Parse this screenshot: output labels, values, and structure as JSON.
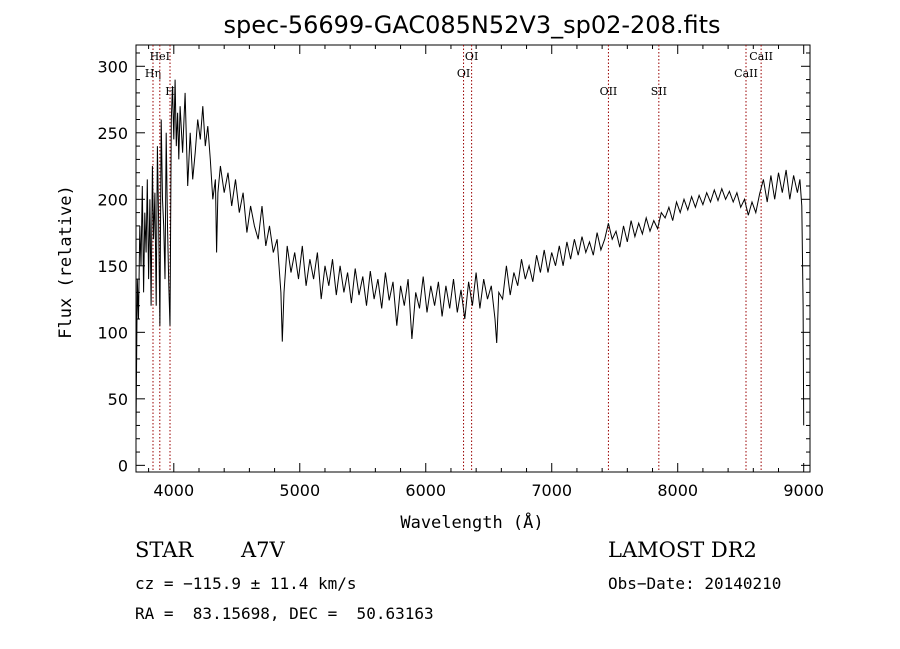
{
  "chart_data": {
    "type": "line",
    "title": "spec-56699-GAC085N52V3_sp02-208.fits",
    "xlabel": "Wavelength (Å)",
    "ylabel": "Flux (relative)",
    "xlim": [
      3700,
      9050
    ],
    "ylim": [
      -5,
      316
    ],
    "x_ticks": [
      4000,
      5000,
      6000,
      7000,
      8000,
      9000
    ],
    "y_ticks": [
      0,
      50,
      100,
      150,
      200,
      250,
      300
    ],
    "grid": false,
    "line_color": "#000000",
    "marker_color": "#990000",
    "series": [
      {
        "points": [
          [
            3700,
            25
          ],
          [
            3710,
            140
          ],
          [
            3720,
            110
          ],
          [
            3730,
            180
          ],
          [
            3740,
            150
          ],
          [
            3750,
            210
          ],
          [
            3760,
            130
          ],
          [
            3770,
            190
          ],
          [
            3780,
            160
          ],
          [
            3790,
            215
          ],
          [
            3800,
            140
          ],
          [
            3810,
            200
          ],
          [
            3820,
            120
          ],
          [
            3830,
            225
          ],
          [
            3840,
            170
          ],
          [
            3850,
            205
          ],
          [
            3860,
            120
          ],
          [
            3870,
            240
          ],
          [
            3880,
            180
          ],
          [
            3890,
            105
          ],
          [
            3900,
            260
          ],
          [
            3910,
            200
          ],
          [
            3920,
            180
          ],
          [
            3930,
            140
          ],
          [
            3940,
            250
          ],
          [
            3950,
            180
          ],
          [
            3960,
            135
          ],
          [
            3970,
            105
          ],
          [
            3980,
            260
          ],
          [
            3990,
            285
          ],
          [
            4000,
            245
          ],
          [
            4010,
            290
          ],
          [
            4020,
            240
          ],
          [
            4030,
            265
          ],
          [
            4040,
            230
          ],
          [
            4050,
            270
          ],
          [
            4070,
            235
          ],
          [
            4090,
            280
          ],
          [
            4110,
            210
          ],
          [
            4130,
            250
          ],
          [
            4150,
            215
          ],
          [
            4170,
            235
          ],
          [
            4190,
            260
          ],
          [
            4210,
            245
          ],
          [
            4230,
            270
          ],
          [
            4250,
            240
          ],
          [
            4270,
            255
          ],
          [
            4290,
            230
          ],
          [
            4310,
            200
          ],
          [
            4330,
            215
          ],
          [
            4340,
            160
          ],
          [
            4350,
            205
          ],
          [
            4370,
            225
          ],
          [
            4400,
            205
          ],
          [
            4430,
            220
          ],
          [
            4460,
            195
          ],
          [
            4490,
            215
          ],
          [
            4520,
            190
          ],
          [
            4550,
            205
          ],
          [
            4580,
            175
          ],
          [
            4610,
            195
          ],
          [
            4640,
            180
          ],
          [
            4670,
            170
          ],
          [
            4700,
            195
          ],
          [
            4730,
            165
          ],
          [
            4760,
            180
          ],
          [
            4790,
            160
          ],
          [
            4820,
            170
          ],
          [
            4850,
            130
          ],
          [
            4861,
            93
          ],
          [
            4875,
            130
          ],
          [
            4900,
            165
          ],
          [
            4930,
            145
          ],
          [
            4960,
            160
          ],
          [
            4990,
            140
          ],
          [
            5020,
            165
          ],
          [
            5050,
            135
          ],
          [
            5080,
            155
          ],
          [
            5110,
            140
          ],
          [
            5140,
            160
          ],
          [
            5170,
            125
          ],
          [
            5200,
            150
          ],
          [
            5230,
            135
          ],
          [
            5260,
            155
          ],
          [
            5290,
            128
          ],
          [
            5320,
            150
          ],
          [
            5350,
            130
          ],
          [
            5380,
            145
          ],
          [
            5410,
            122
          ],
          [
            5440,
            148
          ],
          [
            5470,
            128
          ],
          [
            5500,
            142
          ],
          [
            5530,
            120
          ],
          [
            5560,
            146
          ],
          [
            5590,
            125
          ],
          [
            5620,
            140
          ],
          [
            5650,
            118
          ],
          [
            5680,
            145
          ],
          [
            5710,
            124
          ],
          [
            5740,
            138
          ],
          [
            5770,
            105
          ],
          [
            5800,
            135
          ],
          [
            5830,
            120
          ],
          [
            5860,
            140
          ],
          [
            5890,
            95
          ],
          [
            5920,
            130
          ],
          [
            5950,
            118
          ],
          [
            5980,
            142
          ],
          [
            6010,
            115
          ],
          [
            6040,
            135
          ],
          [
            6070,
            120
          ],
          [
            6100,
            138
          ],
          [
            6130,
            112
          ],
          [
            6160,
            135
          ],
          [
            6190,
            118
          ],
          [
            6220,
            140
          ],
          [
            6250,
            115
          ],
          [
            6280,
            132
          ],
          [
            6310,
            110
          ],
          [
            6340,
            138
          ],
          [
            6370,
            120
          ],
          [
            6400,
            145
          ],
          [
            6430,
            118
          ],
          [
            6460,
            140
          ],
          [
            6490,
            125
          ],
          [
            6520,
            135
          ],
          [
            6550,
            110
          ],
          [
            6563,
            92
          ],
          [
            6580,
            130
          ],
          [
            6610,
            125
          ],
          [
            6640,
            150
          ],
          [
            6670,
            128
          ],
          [
            6700,
            145
          ],
          [
            6730,
            135
          ],
          [
            6760,
            155
          ],
          [
            6790,
            140
          ],
          [
            6820,
            150
          ],
          [
            6850,
            138
          ],
          [
            6880,
            158
          ],
          [
            6910,
            145
          ],
          [
            6940,
            162
          ],
          [
            6970,
            145
          ],
          [
            7000,
            160
          ],
          [
            7030,
            150
          ],
          [
            7060,
            165
          ],
          [
            7090,
            150
          ],
          [
            7120,
            168
          ],
          [
            7150,
            155
          ],
          [
            7180,
            170
          ],
          [
            7210,
            158
          ],
          [
            7240,
            172
          ],
          [
            7270,
            160
          ],
          [
            7300,
            168
          ],
          [
            7330,
            158
          ],
          [
            7360,
            175
          ],
          [
            7390,
            162
          ],
          [
            7420,
            170
          ],
          [
            7450,
            182
          ],
          [
            7480,
            170
          ],
          [
            7510,
            176
          ],
          [
            7540,
            164
          ],
          [
            7570,
            180
          ],
          [
            7600,
            168
          ],
          [
            7630,
            184
          ],
          [
            7660,
            172
          ],
          [
            7690,
            182
          ],
          [
            7720,
            174
          ],
          [
            7750,
            186
          ],
          [
            7780,
            176
          ],
          [
            7810,
            184
          ],
          [
            7840,
            178
          ],
          [
            7870,
            190
          ],
          [
            7900,
            186
          ],
          [
            7930,
            194
          ],
          [
            7960,
            184
          ],
          [
            7990,
            198
          ],
          [
            8020,
            190
          ],
          [
            8050,
            200
          ],
          [
            8080,
            192
          ],
          [
            8110,
            202
          ],
          [
            8140,
            194
          ],
          [
            8170,
            203
          ],
          [
            8200,
            196
          ],
          [
            8230,
            205
          ],
          [
            8260,
            198
          ],
          [
            8290,
            207
          ],
          [
            8320,
            199
          ],
          [
            8350,
            208
          ],
          [
            8380,
            200
          ],
          [
            8410,
            206
          ],
          [
            8440,
            198
          ],
          [
            8470,
            205
          ],
          [
            8500,
            194
          ],
          [
            8530,
            200
          ],
          [
            8560,
            188
          ],
          [
            8590,
            198
          ],
          [
            8620,
            190
          ],
          [
            8650,
            204
          ],
          [
            8680,
            215
          ],
          [
            8710,
            198
          ],
          [
            8740,
            218
          ],
          [
            8770,
            200
          ],
          [
            8800,
            220
          ],
          [
            8830,
            205
          ],
          [
            8860,
            222
          ],
          [
            8890,
            200
          ],
          [
            8920,
            218
          ],
          [
            8950,
            205
          ],
          [
            8970,
            215
          ],
          [
            8985,
            195
          ],
          [
            8995,
            120
          ],
          [
            9000,
            30
          ]
        ]
      }
    ],
    "line_markers": [
      {
        "label": "Hη",
        "x": 3835,
        "level": 1
      },
      {
        "label": "HeI",
        "x": 3889,
        "level": 0
      },
      {
        "label": "H",
        "x": 3970,
        "level": 2
      },
      {
        "label": "OI",
        "x": 6300,
        "level": 1
      },
      {
        "label": "OI",
        "x": 6364,
        "level": 0
      },
      {
        "label": "OII",
        "x": 7450,
        "level": 2
      },
      {
        "label": "SII",
        "x": 7850,
        "level": 2
      },
      {
        "label": "CaII",
        "x": 8542,
        "level": 1
      },
      {
        "label": "CaII",
        "x": 8662,
        "level": 0
      }
    ]
  },
  "info": {
    "star_type": "STAR",
    "spectral_class": "A7V",
    "survey": "LAMOST DR2",
    "cz": "cz = −115.9 ± 11.4 km/s",
    "obs_date": "Obs−Date: 20140210",
    "coords": "RA =  83.15698, DEC =  50.63163"
  }
}
